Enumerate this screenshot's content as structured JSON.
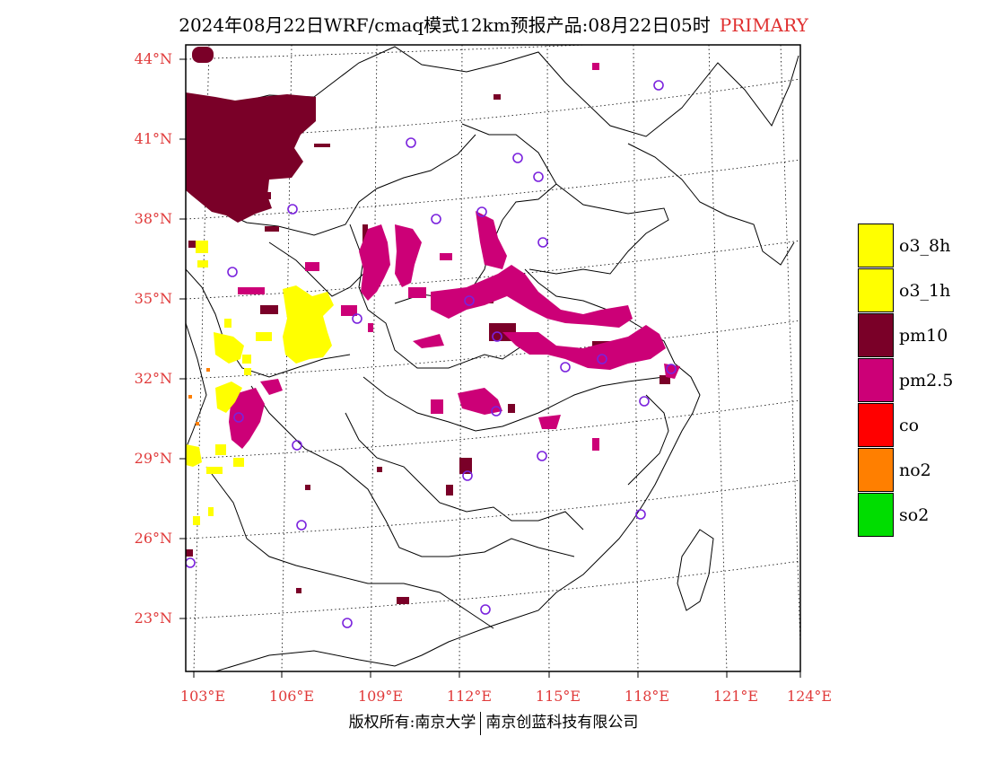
{
  "title": {
    "main": "2024年08月22日WRF/cmaq模式12km预报产品:08月22日05时",
    "tag": "PRIMARY"
  },
  "axes": {
    "lat_labels": [
      "44°N",
      "41°N",
      "38°N",
      "35°N",
      "32°N",
      "29°N",
      "26°N",
      "23°N"
    ],
    "lon_labels": [
      "103°E",
      "106°E",
      "109°E",
      "112°E",
      "115°E",
      "118°E",
      "121°E",
      "124°E"
    ]
  },
  "legend": {
    "items": [
      {
        "label": "o3_8h",
        "color": "#ffff00"
      },
      {
        "label": "o3_1h",
        "color": "#ffff00"
      },
      {
        "label": "pm10",
        "color": "#7a0028"
      },
      {
        "label": "pm2.5",
        "color": "#cc0077"
      },
      {
        "label": "co",
        "color": "#ff0000"
      },
      {
        "label": "no2",
        "color": "#ff7f00"
      },
      {
        "label": "so2",
        "color": "#00dd00"
      }
    ]
  },
  "footer": {
    "left": "版权所有:南京大学",
    "right": "南京创蓝科技有限公司"
  },
  "colors": {
    "pm10": "#7a0028",
    "pm25": "#cc0077",
    "o3": "#ffff00",
    "no2": "#ff7f00",
    "station": "#7a22dd",
    "axis_label": "#e03a3a"
  }
}
